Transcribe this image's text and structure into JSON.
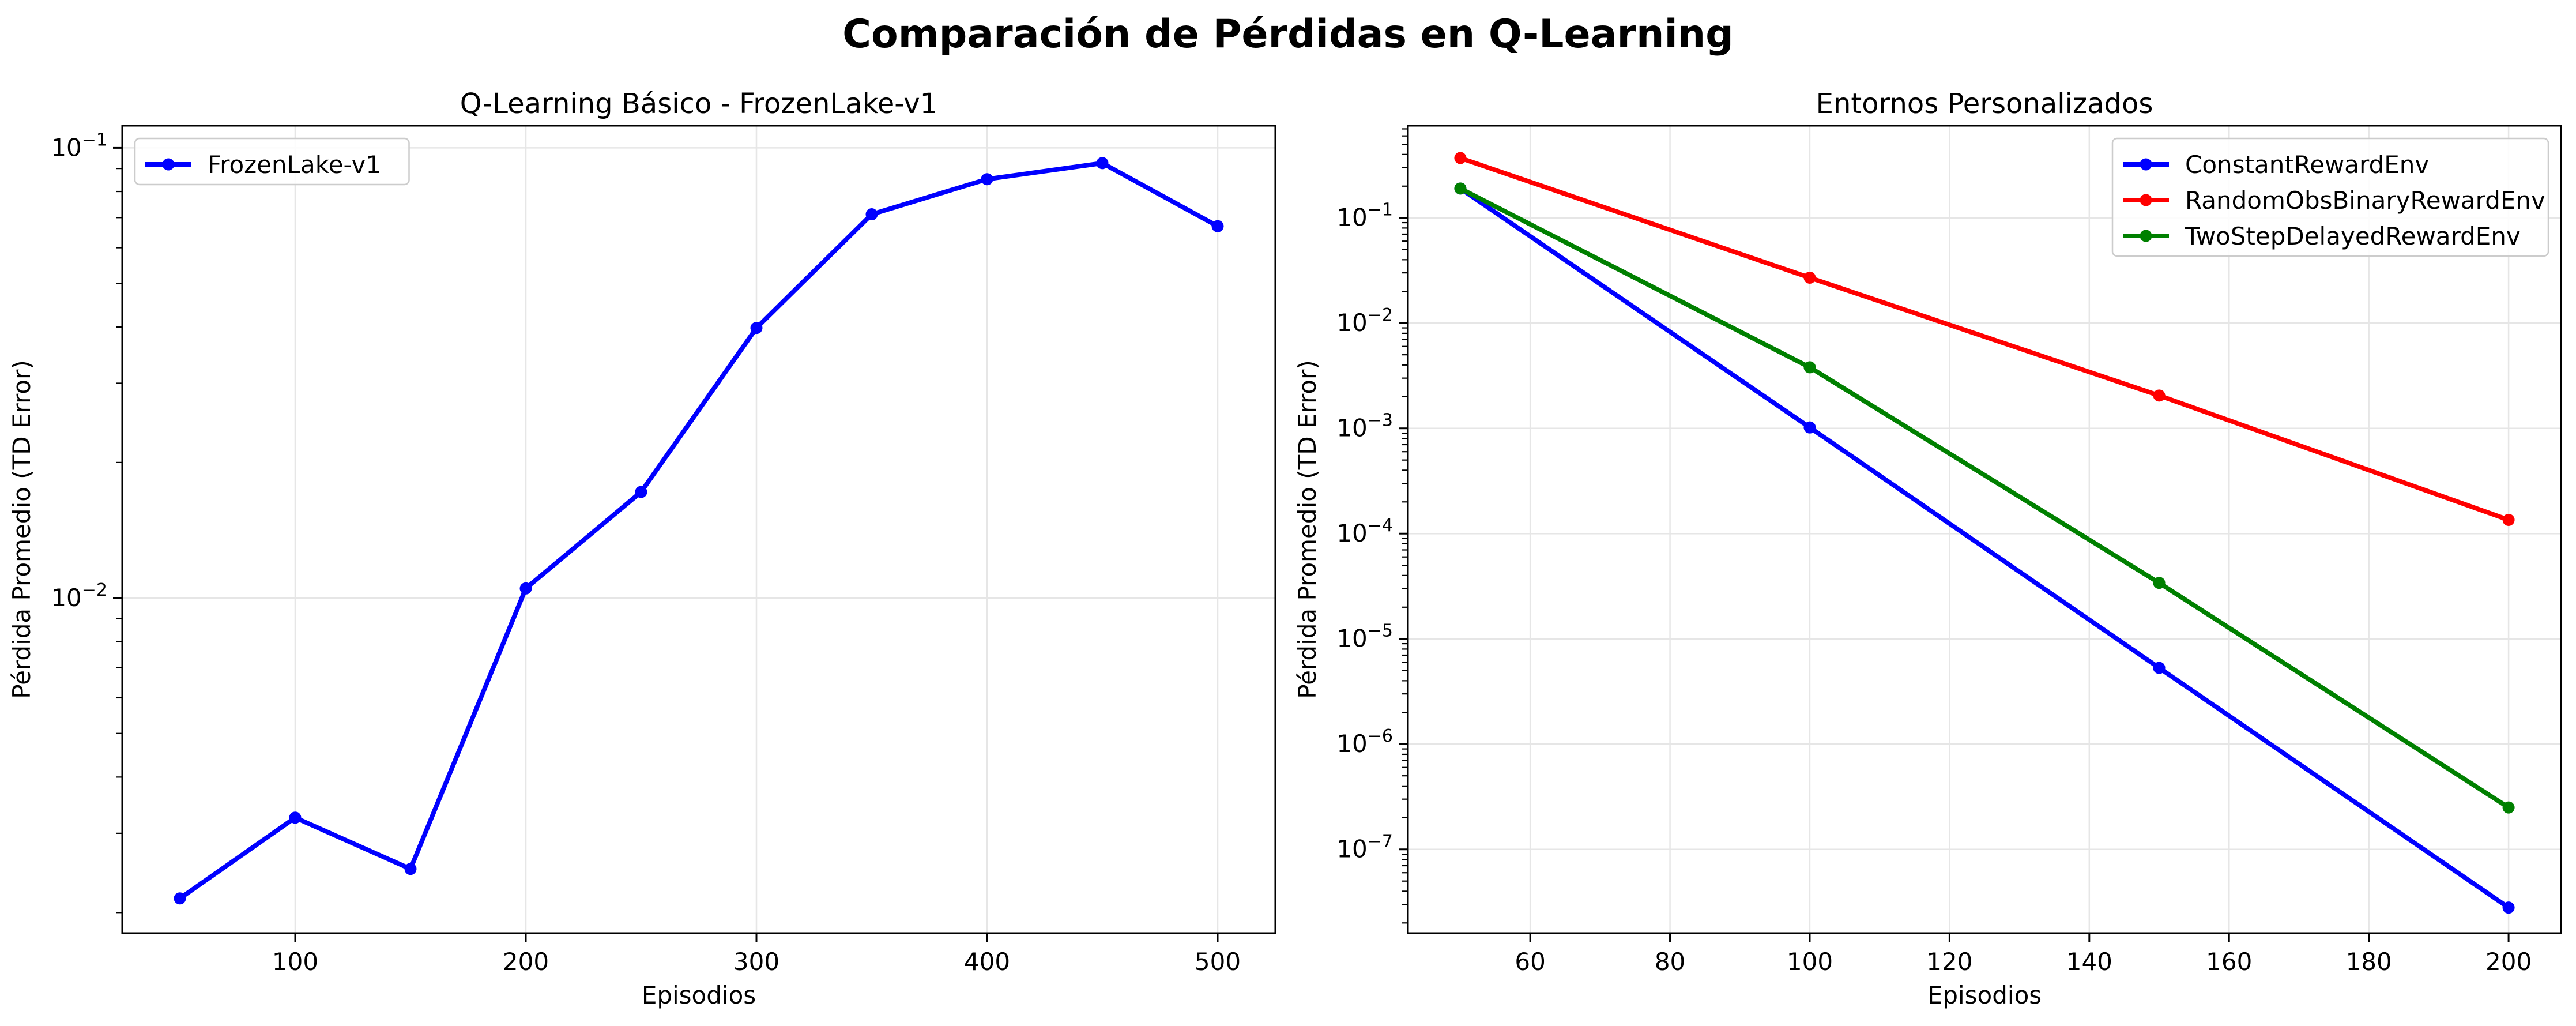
{
  "figure": {
    "title": "Comparación de Pérdidas en Q-Learning"
  },
  "chart_data": [
    {
      "type": "line",
      "title": "Q-Learning Básico - FrozenLake-v1",
      "xlabel": "Episodios",
      "ylabel": "Pérdida Promedio (TD Error)",
      "yscale": "log",
      "grid": true,
      "legend_loc": "upper left",
      "xlim": [
        25,
        525
      ],
      "ylim": [
        0.0018,
        0.112
      ],
      "xticks": [
        100,
        200,
        300,
        400,
        500
      ],
      "yticks": [
        {
          "value": 0.01,
          "base": "10",
          "exp": "−2"
        },
        {
          "value": 0.1,
          "base": "10",
          "exp": "−1"
        }
      ],
      "series": [
        {
          "name": "FrozenLake-v1",
          "color": "#0000ff",
          "x": [
            50,
            100,
            150,
            200,
            250,
            300,
            350,
            400,
            450,
            500
          ],
          "y": [
            0.00215,
            0.00325,
            0.0025,
            0.0105,
            0.0172,
            0.0398,
            0.0712,
            0.0852,
            0.0925,
            0.067
          ]
        }
      ]
    },
    {
      "type": "line",
      "title": "Entornos Personalizados",
      "xlabel": "Episodios",
      "ylabel": "Pérdida Promedio (TD Error)",
      "yscale": "log",
      "grid": true,
      "legend_loc": "upper right",
      "xlim": [
        42.5,
        207.5
      ],
      "ylim": [
        1.6e-08,
        0.75
      ],
      "xticks": [
        60,
        80,
        100,
        120,
        140,
        160,
        180,
        200
      ],
      "yticks": [
        {
          "value": 1e-07,
          "base": "10",
          "exp": "−7"
        },
        {
          "value": 1e-06,
          "base": "10",
          "exp": "−6"
        },
        {
          "value": 1e-05,
          "base": "10",
          "exp": "−5"
        },
        {
          "value": 0.0001,
          "base": "10",
          "exp": "−4"
        },
        {
          "value": 0.001,
          "base": "10",
          "exp": "−3"
        },
        {
          "value": 0.01,
          "base": "10",
          "exp": "−2"
        },
        {
          "value": 0.1,
          "base": "10",
          "exp": "−1"
        }
      ],
      "series": [
        {
          "name": "ConstantRewardEnv",
          "color": "#0000ff",
          "x": [
            50,
            100,
            150,
            200
          ],
          "y": [
            0.19,
            0.00102,
            5.3e-06,
            2.8e-08
          ]
        },
        {
          "name": "RandomObsBinaryRewardEnv",
          "color": "#ff0000",
          "x": [
            50,
            100,
            150,
            200
          ],
          "y": [
            0.37,
            0.027,
            0.00205,
            0.000135
          ]
        },
        {
          "name": "TwoStepDelayedRewardEnv",
          "color": "#008000",
          "x": [
            50,
            100,
            150,
            200
          ],
          "y": [
            0.19,
            0.0038,
            3.4e-05,
            2.5e-07
          ]
        }
      ]
    }
  ]
}
